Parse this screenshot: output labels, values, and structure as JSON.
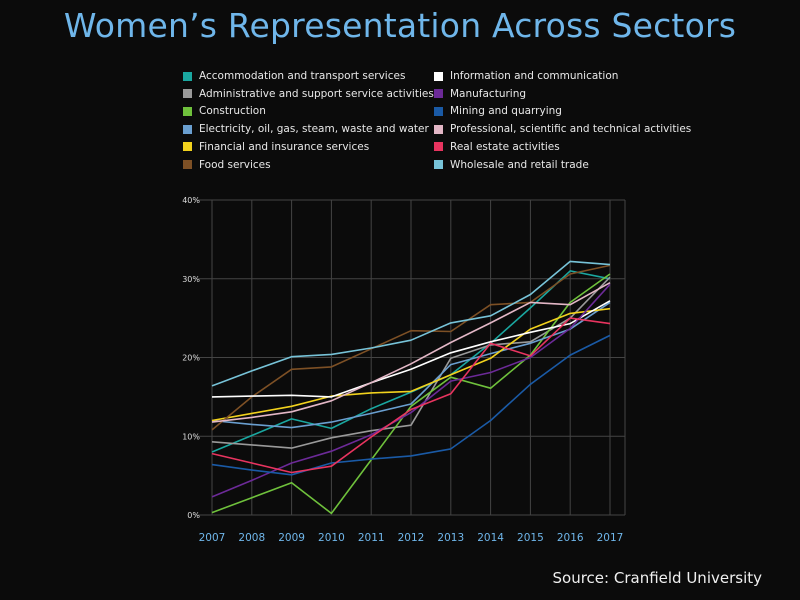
{
  "chart_data": {
    "type": "line",
    "title": "Women’s Representation Across Sectors",
    "source": "Source: Cranfield University",
    "x": [
      "2007",
      "2008",
      "2009",
      "2010",
      "2011",
      "2012",
      "2013",
      "2014",
      "2015",
      "2016",
      "2017"
    ],
    "ylim": [
      0,
      40
    ],
    "yticks": [
      "0%",
      "10%",
      "20%",
      "30%",
      "40%"
    ],
    "yticks_values": [
      0,
      10,
      20,
      30,
      40
    ],
    "grid": true,
    "legend_position": "top",
    "series": [
      {
        "name": "Accommodation and transport services",
        "color": "#1aa7a0",
        "values": [
          8,
          10.1,
          12.2,
          11.0,
          13.5,
          15.6,
          17.8,
          21.8,
          26.3,
          31.0,
          30.0
        ]
      },
      {
        "name": "Administrative and support service activities",
        "color": "#9a9a9a",
        "values": [
          9.3,
          8.9,
          8.5,
          9.8,
          10.7,
          11.4,
          19.9,
          21.6,
          22.0,
          25.0,
          30.2
        ]
      },
      {
        "name": "Construction",
        "color": "#6fc13c",
        "values": [
          0.3,
          2.2,
          4.1,
          0.2,
          7.0,
          13.8,
          17.5,
          16.1,
          20.3,
          27.0,
          30.6
        ]
      },
      {
        "name": "Electricity, oil, gas, steam, waste and water",
        "color": "#6a9fd0",
        "values": [
          12.0,
          11.5,
          11.1,
          11.8,
          12.9,
          14.1,
          19.1,
          20.5,
          21.8,
          23.6,
          27.0
        ]
      },
      {
        "name": "Financial and insurance services",
        "color": "#f2d21d",
        "values": [
          12.0,
          12.9,
          13.8,
          15.1,
          15.5,
          15.7,
          17.8,
          19.9,
          23.6,
          25.6,
          26.2
        ]
      },
      {
        "name": "Food services",
        "color": "#7d5025",
        "values": [
          10.8,
          15.0,
          18.5,
          18.8,
          21.1,
          23.4,
          23.3,
          26.7,
          27.0,
          30.6,
          31.7
        ]
      },
      {
        "name": "Information and communication",
        "color": "#ffffff",
        "values": [
          15.0,
          15.1,
          15.2,
          15.0,
          16.8,
          18.5,
          20.6,
          22.0,
          23.2,
          24.3,
          27.2
        ]
      },
      {
        "name": "Manufacturing",
        "color": "#6c2a98",
        "values": [
          2.3,
          4.4,
          6.6,
          8.1,
          10.2,
          13.0,
          17.0,
          18.1,
          20.0,
          23.7,
          29.3
        ]
      },
      {
        "name": "Mining and quarrying",
        "color": "#1a5aa6",
        "values": [
          6.4,
          5.7,
          5.1,
          6.6,
          7.1,
          7.5,
          8.4,
          12.0,
          16.6,
          20.3,
          22.8
        ]
      },
      {
        "name": "Professional, scientific and technical activities",
        "color": "#e3b7c6",
        "values": [
          11.8,
          12.4,
          13.1,
          14.5,
          16.8,
          19.2,
          21.9,
          24.4,
          27.0,
          26.7,
          29.5
        ]
      },
      {
        "name": "Real estate activities",
        "color": "#e8345f",
        "values": [
          7.8,
          6.6,
          5.4,
          6.2,
          9.9,
          13.4,
          15.4,
          21.8,
          20.2,
          25.0,
          24.3
        ]
      },
      {
        "name": "Wholesale and retail trade",
        "color": "#77c3d8",
        "values": [
          16.4,
          18.3,
          20.1,
          20.4,
          21.2,
          22.2,
          24.4,
          25.3,
          28.0,
          32.2,
          31.8
        ]
      }
    ]
  }
}
